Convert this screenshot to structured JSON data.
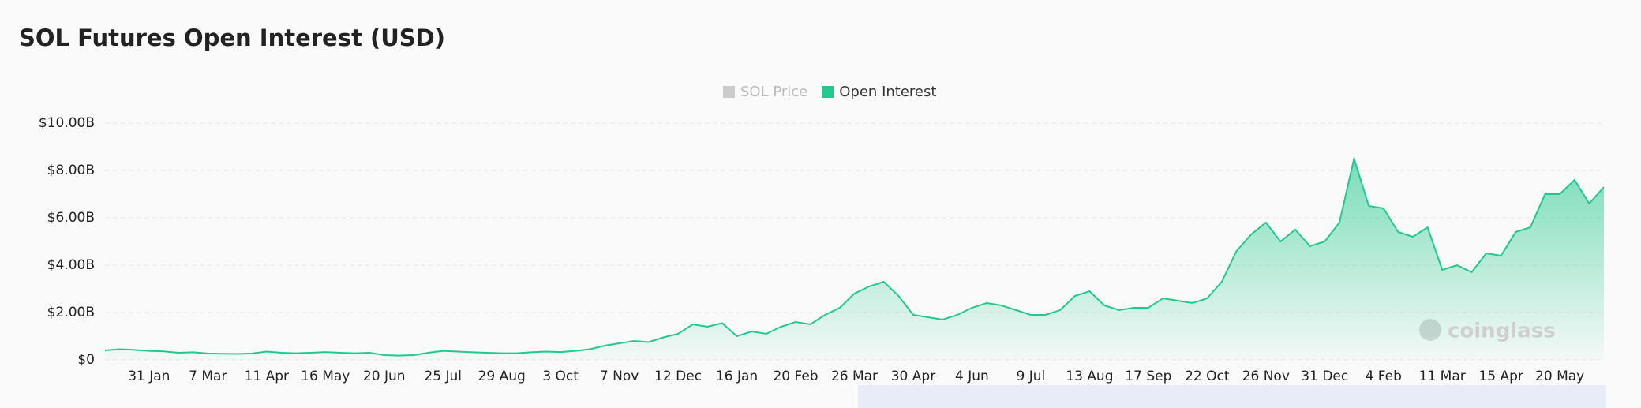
{
  "chart_data": {
    "type": "area",
    "title": "SOL Futures Open Interest (USD)",
    "watermark": "coinglass",
    "categories": [
      null,
      null,
      null,
      "31 Jan",
      null,
      null,
      null,
      "7 Mar",
      null,
      null,
      null,
      "11 Apr",
      null,
      null,
      null,
      "16 May",
      null,
      null,
      null,
      "20 Jun",
      null,
      null,
      null,
      "25 Jul",
      null,
      null,
      null,
      "29 Aug",
      null,
      null,
      null,
      "3 Oct",
      null,
      null,
      null,
      "7 Nov",
      null,
      null,
      null,
      "12 Dec",
      null,
      null,
      null,
      "16 Jan",
      null,
      null,
      null,
      "20 Feb",
      null,
      null,
      null,
      "26 Mar",
      null,
      null,
      null,
      "30 Apr",
      null,
      null,
      null,
      "4 Jun",
      null,
      null,
      null,
      "9 Jul",
      null,
      null,
      null,
      "13 Aug",
      null,
      null,
      null,
      "17 Sep",
      null,
      null,
      null,
      "22 Oct",
      null,
      null,
      null,
      "26 Nov",
      null,
      null,
      null,
      "31 Dec",
      null,
      null,
      null,
      "4 Feb",
      null,
      null,
      null,
      "11 Mar",
      null,
      null,
      null,
      "15 Apr",
      null,
      null,
      null,
      "20 May",
      null,
      null,
      null
    ],
    "series": [
      {
        "name": "SOL Price",
        "color": "#cccccc",
        "hidden": true
      },
      {
        "name": "Open Interest",
        "color": "#22c98c",
        "values": [
          400000000.0,
          450000000.0,
          420000000.0,
          380000000.0,
          360000000.0,
          300000000.0,
          320000000.0,
          270000000.0,
          260000000.0,
          250000000.0,
          270000000.0,
          350000000.0,
          300000000.0,
          280000000.0,
          300000000.0,
          330000000.0,
          300000000.0,
          280000000.0,
          300000000.0,
          200000000.0,
          180000000.0,
          200000000.0,
          300000000.0,
          380000000.0,
          350000000.0,
          320000000.0,
          300000000.0,
          280000000.0,
          280000000.0,
          320000000.0,
          350000000.0,
          330000000.0,
          380000000.0,
          450000000.0,
          600000000.0,
          700000000.0,
          800000000.0,
          750000000.0,
          950000000.0,
          1100000000.0,
          1500000000.0,
          1400000000.0,
          1550000000.0,
          1000000000.0,
          1200000000.0,
          1100000000.0,
          1400000000.0,
          1600000000.0,
          1500000000.0,
          1900000000.0,
          2200000000.0,
          2800000000.0,
          3100000000.0,
          3300000000.0,
          2700000000.0,
          1900000000.0,
          1800000000.0,
          1700000000.0,
          1900000000.0,
          2200000000.0,
          2400000000.0,
          2300000000.0,
          2100000000.0,
          1900000000.0,
          1900000000.0,
          2100000000.0,
          2700000000.0,
          2900000000.0,
          2300000000.0,
          2100000000.0,
          2200000000.0,
          2200000000.0,
          2600000000.0,
          2500000000.0,
          2400000000.0,
          2600000000.0,
          3300000000.0,
          4600000000.0,
          5300000000.0,
          5800000000.0,
          5000000000.0,
          5500000000.0,
          4800000000.0,
          5000000000.0,
          5800000000.0,
          8500000000.0,
          6500000000.0,
          6400000000.0,
          5400000000.0,
          5200000000.0,
          5600000000.0,
          3800000000.0,
          4000000000.0,
          3700000000.0,
          4500000000.0,
          4400000000.0,
          5400000000.0,
          5600000000.0,
          7000000000.0,
          7000000000.0,
          7600000000.0,
          6600000000.0,
          7300000000.0
        ]
      }
    ],
    "ylim": [
      0,
      10000000000
    ],
    "yticks": [
      {
        "value": 0,
        "label": "$0"
      },
      {
        "value": 2000000000,
        "label": "$2.00B"
      },
      {
        "value": 4000000000,
        "label": "$4.00B"
      },
      {
        "value": 6000000000,
        "label": "$6.00B"
      },
      {
        "value": 8000000000,
        "label": "$8.00B"
      },
      {
        "value": 10000000000,
        "label": "$10.00B"
      }
    ],
    "grid": true
  }
}
